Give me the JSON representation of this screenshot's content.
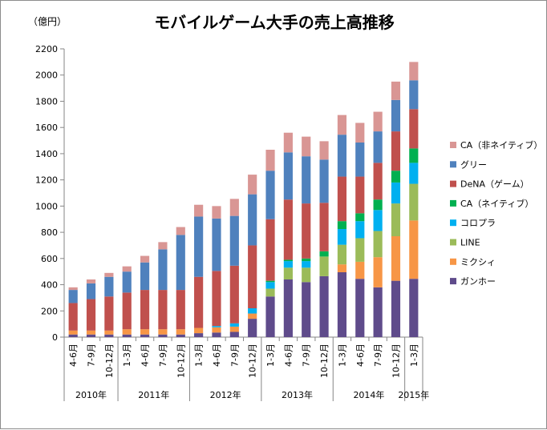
{
  "chart_data": {
    "type": "bar",
    "stacked": true,
    "title": "モバイルゲーム大手の売上高推移",
    "unit_label": "（億円）",
    "ylim": [
      0,
      2200
    ],
    "yticks": [
      0,
      200,
      400,
      600,
      800,
      1000,
      1200,
      1400,
      1600,
      1800,
      2000,
      2200
    ],
    "grid": false,
    "legend_position": "right",
    "categories": [
      "4-6月",
      "7-9月",
      "10-12月",
      "1-3月",
      "4-6月",
      "7-9月",
      "10-12月",
      "1-3月",
      "4-6月",
      "7-9月",
      "10-12月",
      "1-3月",
      "4-6月",
      "7-9月",
      "10-12月",
      "1-3月",
      "4-6月",
      "7-9月",
      "10-12月",
      "1-3月"
    ],
    "year_groups": [
      {
        "label": "2010年",
        "count": 3
      },
      {
        "label": "2011年",
        "count": 4
      },
      {
        "label": "2012年",
        "count": 4
      },
      {
        "label": "2013年",
        "count": 4
      },
      {
        "label": "2014年",
        "count": 4
      },
      {
        "label": "2015年",
        "count": 1
      }
    ],
    "series": [
      {
        "name": "ガンホー",
        "color": "#5f4b8b",
        "values": [
          20,
          20,
          20,
          20,
          20,
          20,
          20,
          30,
          35,
          40,
          140,
          310,
          440,
          420,
          465,
          495,
          445,
          380,
          430,
          445
        ]
      },
      {
        "name": "ミクシィ",
        "color": "#f79646",
        "values": [
          30,
          30,
          30,
          40,
          40,
          40,
          40,
          40,
          40,
          40,
          40,
          0,
          0,
          0,
          0,
          60,
          130,
          230,
          340,
          445
        ]
      },
      {
        "name": "LINE",
        "color": "#9bbb59",
        "values": [
          0,
          0,
          0,
          0,
          0,
          0,
          0,
          0,
          0,
          0,
          0,
          60,
          90,
          110,
          150,
          150,
          180,
          200,
          250,
          280
        ]
      },
      {
        "name": "コロプラ",
        "color": "#00b0f0",
        "values": [
          0,
          0,
          0,
          0,
          0,
          0,
          0,
          0,
          10,
          25,
          40,
          50,
          50,
          50,
          0,
          120,
          130,
          160,
          160,
          160
        ]
      },
      {
        "name": "CA（ネイティブ）",
        "color": "#00b050",
        "values": [
          0,
          0,
          0,
          0,
          0,
          0,
          0,
          0,
          0,
          0,
          0,
          10,
          10,
          20,
          40,
          60,
          60,
          80,
          90,
          110
        ]
      },
      {
        "name": "DeNA（ゲーム）",
        "color": "#c0504d",
        "values": [
          210,
          240,
          260,
          280,
          300,
          300,
          300,
          390,
          420,
          440,
          480,
          470,
          460,
          420,
          370,
          340,
          280,
          280,
          300,
          300
        ]
      },
      {
        "name": "グリー",
        "color": "#4f81bd",
        "values": [
          100,
          120,
          150,
          160,
          210,
          310,
          420,
          460,
          400,
          380,
          390,
          370,
          360,
          360,
          330,
          320,
          260,
          240,
          240,
          220
        ]
      },
      {
        "name": "CA（非ネイティブ）",
        "color": "#d99694",
        "values": [
          20,
          30,
          30,
          40,
          50,
          55,
          60,
          90,
          95,
          130,
          150,
          160,
          150,
          150,
          140,
          150,
          150,
          150,
          140,
          140
        ]
      }
    ]
  }
}
